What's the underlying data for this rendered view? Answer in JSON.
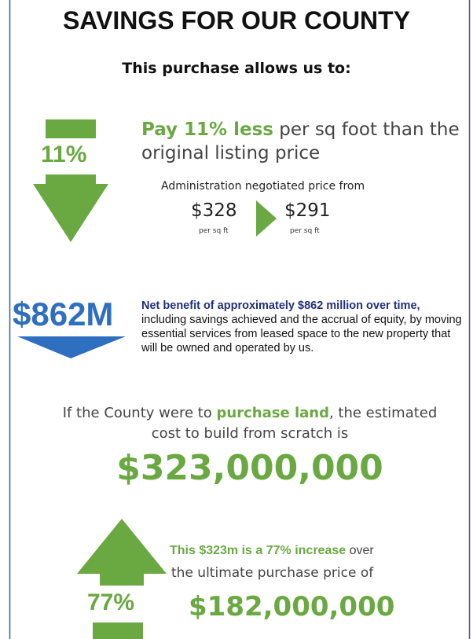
{
  "header": {
    "title": "SAVINGS FOR OUR COUNTY",
    "subtitle": "This purchase allows us to:"
  },
  "price_section": {
    "badge": "11%",
    "headline_bold": "Pay 11% less",
    "headline_rest": " per sq foot than the",
    "headline_line2": "original listing price",
    "negotiated_label": "Administration negotiated price from",
    "from_price": "$328",
    "from_unit": "per sq ft",
    "to_price": "$291",
    "to_unit": "per sq ft"
  },
  "benefit_section": {
    "badge": "$862M",
    "bold": "Net benefit of approximately $862 million over time,",
    "rest": "including savings achieved and the accrual of equity, by moving essential services from leased space to the new property that will be owned and operated by us."
  },
  "build_section": {
    "text_before": "If the County were to ",
    "text_bold": "purchase land",
    "text_after": ", the estimated",
    "text_line2": "cost to build from scratch is",
    "amount": "$323,000,000"
  },
  "increase_section": {
    "badge": "77%",
    "bold": "This $323m is a 77% increase",
    "rest": " over",
    "line2": "the ultimate purchase price of",
    "amount": "$182,000,000"
  }
}
